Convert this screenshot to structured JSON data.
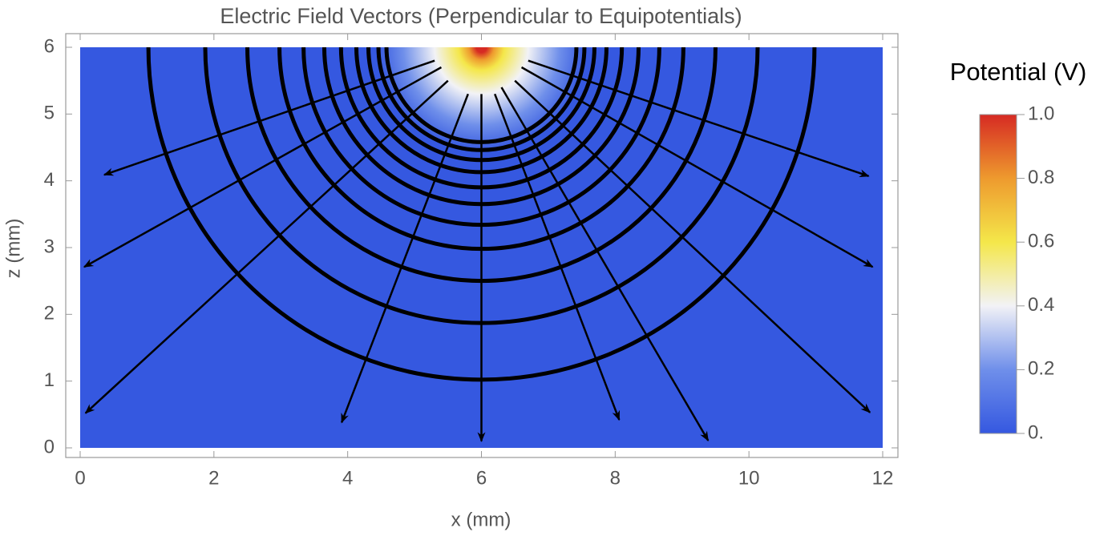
{
  "chart_data": {
    "type": "field",
    "title": "Electric Field Vectors (Perpendicular to Equipotentials)",
    "xlabel": "x (mm)",
    "ylabel": "z (mm)",
    "xlim": [
      0,
      12
    ],
    "ylim": [
      0,
      6
    ],
    "xticks": [
      0,
      2,
      4,
      6,
      8,
      10,
      12
    ],
    "yticks": [
      0,
      1,
      2,
      3,
      4,
      5,
      6
    ],
    "source": {
      "x": 6,
      "y": 6
    },
    "equipotential_radii": [
      4.98,
      4.13,
      3.5,
      3.02,
      2.66,
      2.35,
      2.1,
      1.87,
      1.69,
      1.54,
      1.42
    ],
    "line_color": "#000000",
    "field_lines": [
      {
        "x": [
          5.5,
          0.08
        ],
        "y": [
          5.5,
          0.52
        ]
      },
      {
        "x": [
          5.4,
          0.06
        ],
        "y": [
          5.7,
          2.71
        ]
      },
      {
        "x": [
          5.3,
          0.36
        ],
        "y": [
          5.8,
          4.09
        ]
      },
      {
        "x": [
          5.8,
          3.91
        ],
        "y": [
          5.3,
          0.38
        ]
      },
      {
        "x": [
          6,
          6
        ],
        "y": [
          5.3,
          0.1
        ]
      },
      {
        "x": [
          6.2,
          8.06
        ],
        "y": [
          5.3,
          0.42
        ]
      },
      {
        "x": [
          6.3,
          9.39
        ],
        "y": [
          5.4,
          0.11
        ]
      },
      {
        "x": [
          6.5,
          11.81
        ],
        "y": [
          5.5,
          0.53
        ]
      },
      {
        "x": [
          6.6,
          11.85
        ],
        "y": [
          5.7,
          2.71
        ]
      },
      {
        "x": [
          6.7,
          11.79
        ],
        "y": [
          5.8,
          4.07
        ]
      }
    ],
    "colorbar": {
      "title": "Potential (V)",
      "lim": [
        0,
        1
      ],
      "ticks": [
        {
          "value": 0,
          "label": "0."
        },
        0.2,
        0.4,
        0.6,
        0.8,
        {
          "value": 1,
          "label": "1.0"
        }
      ],
      "colors": [
        "#3558e0",
        "#6f8fea",
        "#f2f2f6",
        "#f4e74a",
        "#ee9a2e",
        "#d62a23"
      ]
    }
  }
}
